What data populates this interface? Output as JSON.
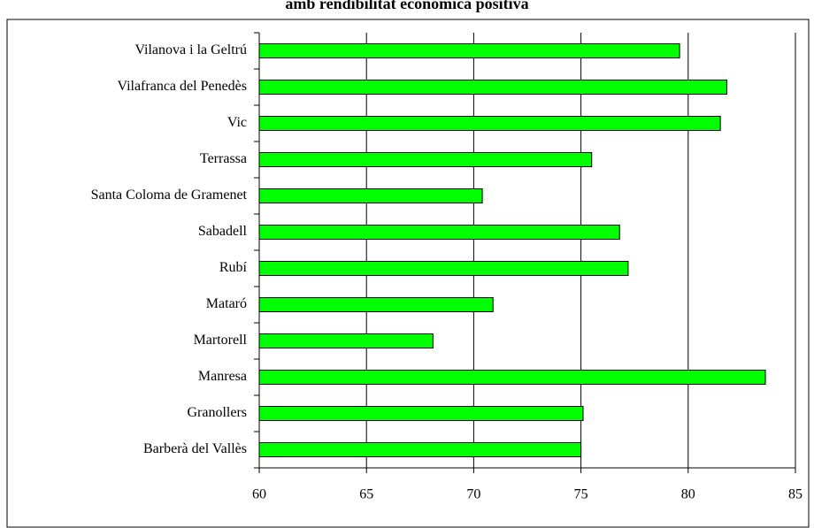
{
  "chart_data": {
    "type": "bar",
    "orientation": "horizontal",
    "title": "amb rendibilitat econòmica positiva",
    "categories": [
      "Vilanova i la Geltrú",
      "Vilafranca del Penedès",
      "Vic",
      "Terrassa",
      "Santa Coloma de Gramenet",
      "Sabadell",
      "Rubí",
      "Mataró",
      "Martorell",
      "Manresa",
      "Granollers",
      "Barberà del Vallès"
    ],
    "values": [
      79.6,
      81.8,
      81.5,
      75.5,
      70.4,
      76.8,
      77.2,
      70.9,
      68.1,
      83.6,
      75.1,
      75.0
    ],
    "color": "#00ff00",
    "xlim": [
      60,
      85
    ],
    "xticks": [
      60,
      65,
      70,
      75,
      80,
      85
    ],
    "grid": true
  }
}
